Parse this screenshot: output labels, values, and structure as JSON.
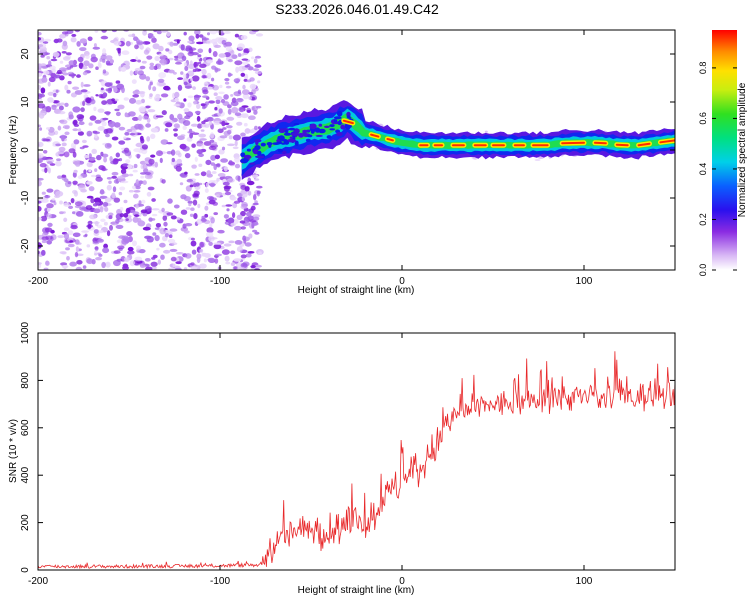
{
  "title": "S233.2026.046.01.49.C42",
  "chart_data": [
    {
      "type": "heatmap",
      "name": "spectrogram",
      "xlabel": "Height of straight line (km)",
      "ylabel": "Frequency (Hz)",
      "xlim": [
        -200,
        150
      ],
      "ylim": [
        -25,
        25
      ],
      "x_ticks": [
        -200,
        -100,
        0,
        100
      ],
      "y_ticks": [
        -20,
        -10,
        0,
        10,
        20
      ],
      "colorbar": {
        "label": "Normalized spectral amplitude",
        "range": [
          0.0,
          0.95
        ],
        "ticks": [
          0.0,
          0.2,
          0.4,
          0.6,
          0.8
        ],
        "colormap": "white-purple-blue-cyan-green-yellow-orange-red"
      },
      "noise_region": {
        "x_from": -200,
        "x_to": -82,
        "freq_range": [
          -25,
          25
        ],
        "amplitude": "0.0-0.2 scattered"
      },
      "signal_ridge": {
        "x": [
          -88,
          -80,
          -70,
          -60,
          -50,
          -40,
          -35,
          -30,
          -25,
          -20,
          -15,
          -10,
          0,
          10,
          20,
          30,
          40,
          50,
          60,
          70,
          80,
          90,
          100,
          110,
          120,
          130,
          140,
          150
        ],
        "freq_hz": [
          -2,
          0,
          2,
          3,
          4,
          4.5,
          5.5,
          6.5,
          5,
          3.5,
          3,
          2.5,
          1.5,
          1,
          1,
          1,
          1,
          1,
          1,
          1,
          1,
          1.5,
          1.5,
          1.5,
          1,
          1,
          1.5,
          2
        ]
      }
    },
    {
      "type": "line",
      "name": "snr",
      "xlabel": "Height of straight line (km)",
      "ylabel": "SNR (10 * v/v)",
      "xlim": [
        -200,
        150
      ],
      "ylim": [
        0,
        1000
      ],
      "x_ticks": [
        -200,
        -100,
        0,
        100
      ],
      "y_ticks": [
        0,
        200,
        400,
        600,
        800,
        1000
      ],
      "color": "#e8282a",
      "envelope": {
        "x": [
          -200,
          -150,
          -100,
          -78,
          -75,
          -70,
          -60,
          -50,
          -40,
          -30,
          -20,
          -15,
          -10,
          -5,
          0,
          5,
          10,
          15,
          20,
          25,
          30,
          40,
          50,
          60,
          70,
          80,
          90,
          100,
          110,
          120,
          130,
          140,
          150
        ],
        "mean": [
          15,
          15,
          18,
          22,
          60,
          110,
          160,
          170,
          160,
          190,
          190,
          240,
          300,
          340,
          370,
          400,
          430,
          480,
          540,
          600,
          660,
          680,
          700,
          700,
          710,
          720,
          730,
          730,
          720,
          740,
          730,
          740,
          750
        ],
        "spread": [
          12,
          12,
          12,
          15,
          130,
          130,
          140,
          160,
          160,
          160,
          150,
          160,
          150,
          160,
          180,
          200,
          220,
          180,
          150,
          130,
          120,
          120,
          120,
          130,
          120,
          130,
          130,
          130,
          130,
          140,
          140,
          140,
          140
        ]
      }
    }
  ]
}
